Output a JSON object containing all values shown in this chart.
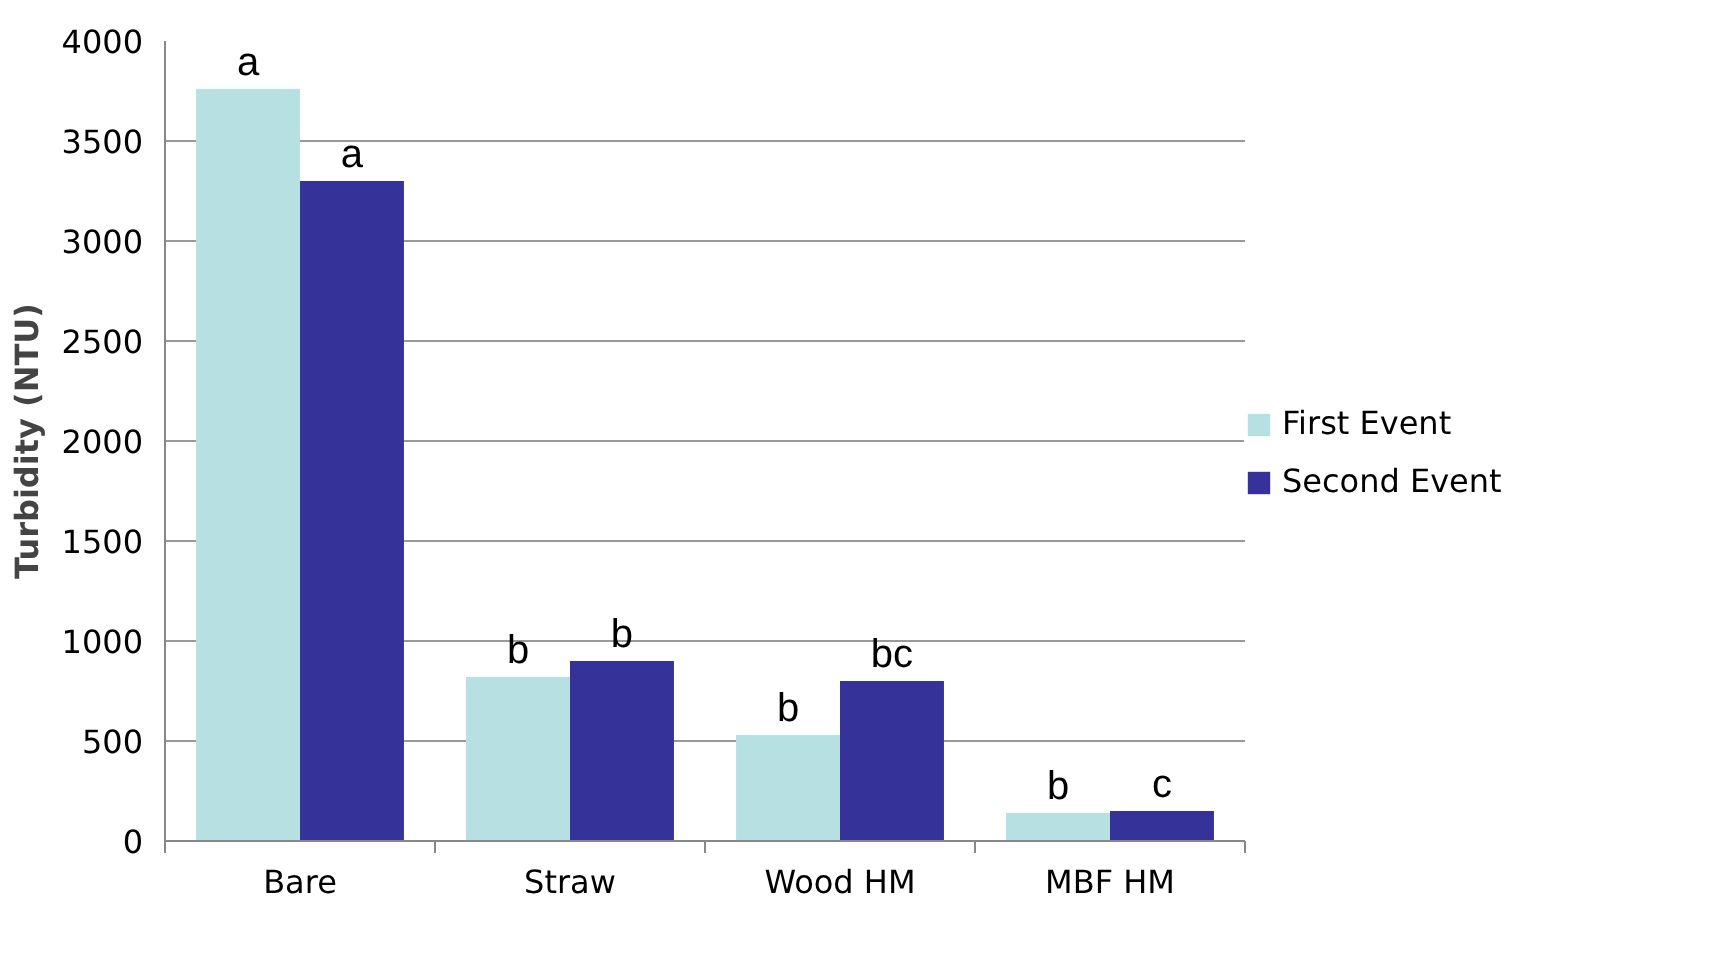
{
  "chart_data": {
    "type": "bar",
    "ylabel": "Turbidity (NTU)",
    "categories": [
      "Bare",
      "Straw",
      "Wood HM",
      "MBF HM"
    ],
    "series": [
      {
        "name": "First Event",
        "color": "#b7e0e3",
        "values": [
          3760,
          820,
          530,
          140
        ],
        "value_labels": [
          "a",
          "b",
          "b",
          "b"
        ]
      },
      {
        "name": "Second Event",
        "color": "#353399",
        "values": [
          3300,
          900,
          800,
          150
        ],
        "value_labels": [
          "a",
          "b",
          "bc",
          "c"
        ]
      }
    ],
    "ylim": [
      0,
      4000
    ],
    "yticks": [
      0,
      500,
      1000,
      1500,
      2000,
      2500,
      3000,
      3500,
      4000
    ],
    "grid": "y",
    "legend": "right"
  }
}
